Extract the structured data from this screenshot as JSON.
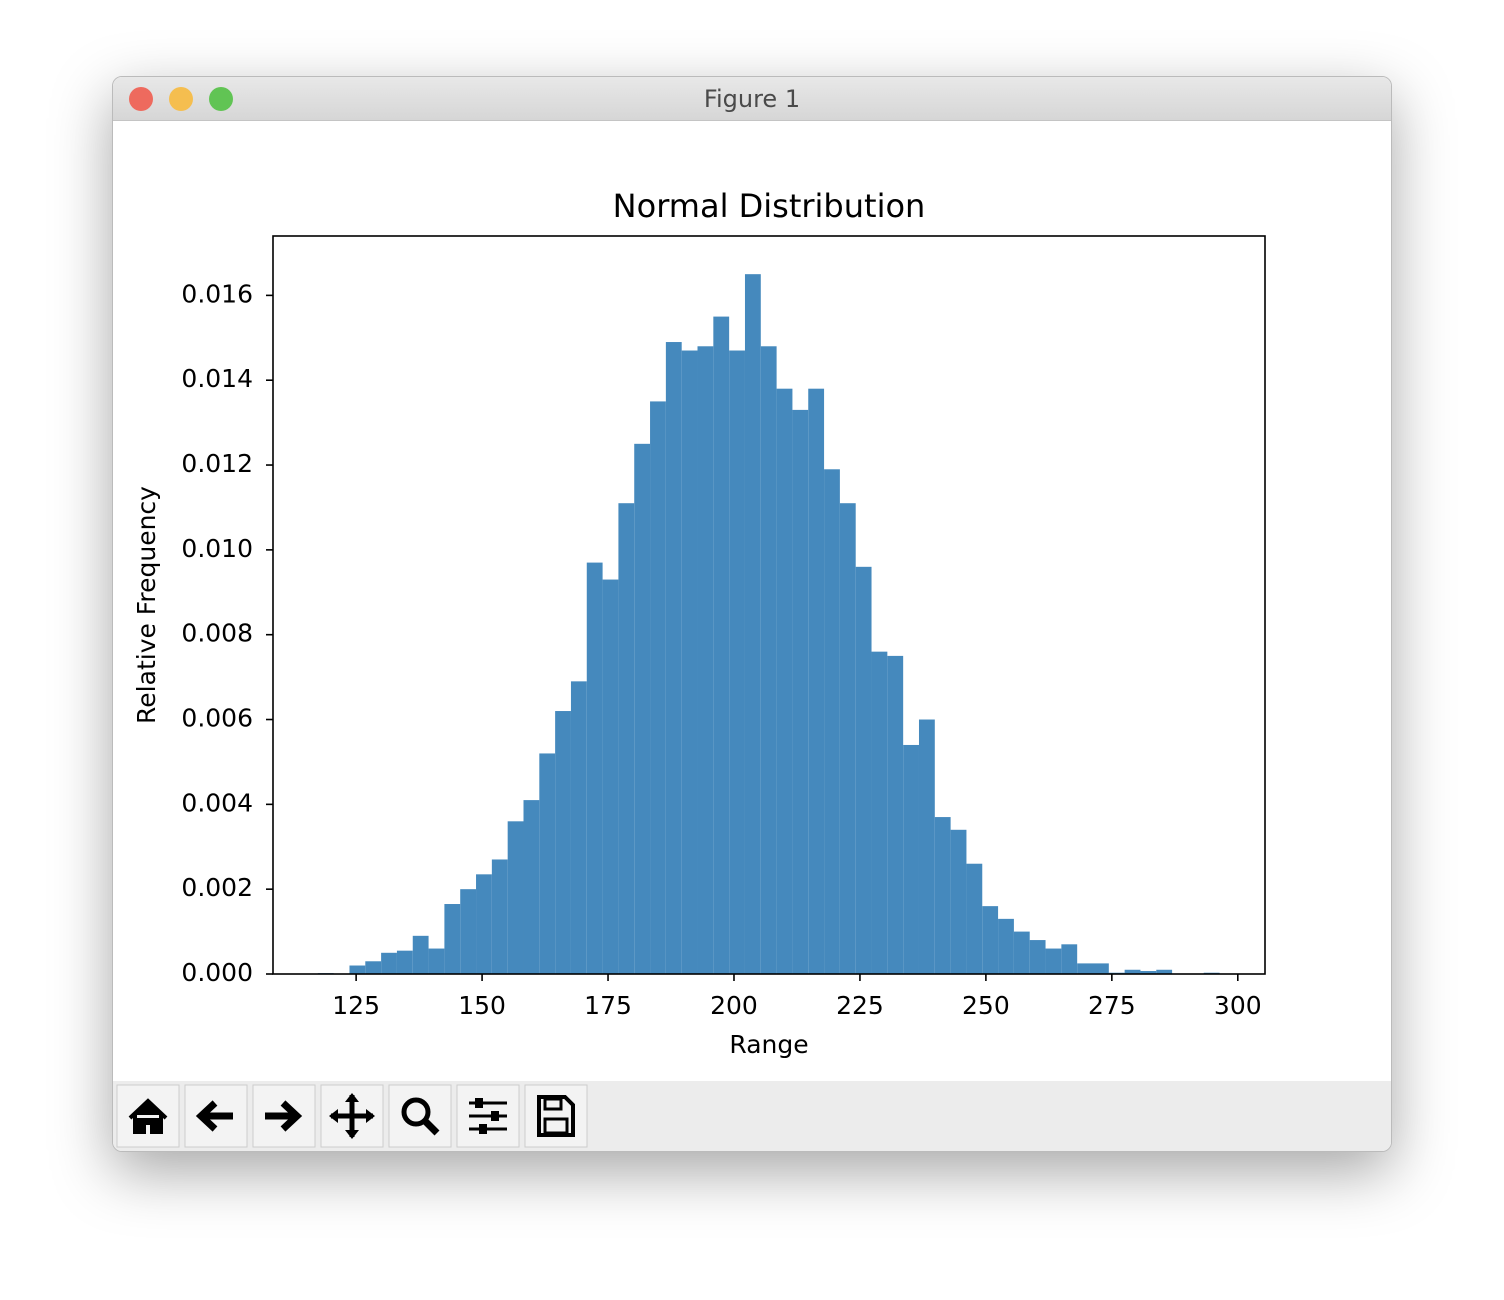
{
  "window": {
    "title": "Figure 1"
  },
  "chart_data": {
    "type": "histogram",
    "title": "Normal Distribution",
    "x_label": "Range",
    "y_label": "Relative Frequency",
    "color": "#4589bd",
    "bins": [
      117.4,
      120.54,
      123.68,
      126.82,
      129.96,
      133.1,
      136.24,
      139.38,
      142.52,
      145.66,
      148.8,
      151.94,
      155.08,
      158.22,
      161.36,
      164.5,
      167.64,
      170.78,
      173.92,
      177.06,
      180.2,
      183.34,
      186.48,
      189.62,
      192.76,
      195.9,
      199.04,
      202.18,
      205.32,
      208.46,
      211.6,
      214.74,
      217.88,
      221.02,
      224.16,
      227.3,
      230.44,
      233.58,
      236.72,
      239.86,
      243,
      246.14,
      249.28,
      252.42,
      255.56,
      258.7,
      261.84,
      264.98,
      268.12,
      271.26,
      274.4,
      277.54,
      280.68,
      283.82,
      286.96,
      290.1,
      293.24,
      296.38
    ],
    "values": [
      2e-05,
      0,
      0.0002,
      0.0003,
      0.0005,
      0.00055,
      0.0009,
      0.0006,
      0.00165,
      0.002,
      0.00235,
      0.0027,
      0.0036,
      0.0041,
      0.0052,
      0.0062,
      0.0069,
      0.0097,
      0.0093,
      0.0111,
      0.0125,
      0.0135,
      0.0149,
      0.0147,
      0.0148,
      0.0155,
      0.0147,
      0.0165,
      0.0148,
      0.0138,
      0.0133,
      0.0138,
      0.0119,
      0.0111,
      0.0096,
      0.0076,
      0.0075,
      0.0054,
      0.006,
      0.0037,
      0.0034,
      0.0026,
      0.0016,
      0.0013,
      0.001,
      0.0008,
      0.0006,
      0.0007,
      0.00025,
      0.00025,
      3e-05,
      0.0001,
      7e-05,
      0.0001,
      0,
      0,
      3e-05
    ],
    "xlim": [
      108.5,
      305.4
    ],
    "xticks": [
      125,
      150,
      175,
      200,
      225,
      250,
      275,
      300
    ],
    "ylim": [
      0,
      0.0174
    ],
    "yticks": [
      {
        "value": 0,
        "label": "0.000"
      },
      {
        "value": 0.002,
        "label": "0.002"
      },
      {
        "value": 0.004,
        "label": "0.004"
      },
      {
        "value": 0.006,
        "label": "0.006"
      },
      {
        "value": 0.008,
        "label": "0.008"
      },
      {
        "value": 0.01,
        "label": "0.010"
      },
      {
        "value": 0.012,
        "label": "0.012"
      },
      {
        "value": 0.014,
        "label": "0.014"
      },
      {
        "value": 0.016,
        "label": "0.016"
      }
    ]
  }
}
